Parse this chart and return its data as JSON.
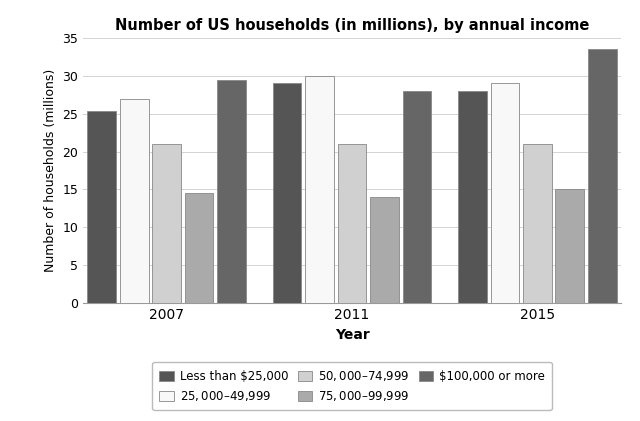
{
  "title": "Number of US households (in millions), by annual income",
  "xlabel": "Year",
  "ylabel": "Number of households (millions)",
  "years": [
    "2007",
    "2011",
    "2015"
  ],
  "categories": [
    "Less than $25,000",
    "$25,000–$49,999",
    "$50,000–$74,999",
    "$75,000–$99,999",
    "$100,000 or more"
  ],
  "values": {
    "Less than $25,000": [
      25.3,
      29.0,
      28.0
    ],
    "$25,000–$49,999": [
      27.0,
      30.0,
      29.0
    ],
    "$50,000–$74,999": [
      21.0,
      21.0,
      21.0
    ],
    "$75,000–$99,999": [
      14.5,
      14.0,
      15.0
    ],
    "$100,000 or more": [
      29.5,
      28.0,
      33.5
    ]
  },
  "colors": {
    "Less than $25,000": "#555555",
    "$25,000–$49,999": "#f8f8f8",
    "$50,000–$74,999": "#d0d0d0",
    "$75,000–$99,999": "#aaaaaa",
    "$100,000 or more": "#666666"
  },
  "bar_edge_color": "#888888",
  "ylim": [
    0,
    35
  ],
  "yticks": [
    0,
    5,
    10,
    15,
    20,
    25,
    30,
    35
  ],
  "figsize": [
    6.4,
    4.21
  ],
  "dpi": 100
}
